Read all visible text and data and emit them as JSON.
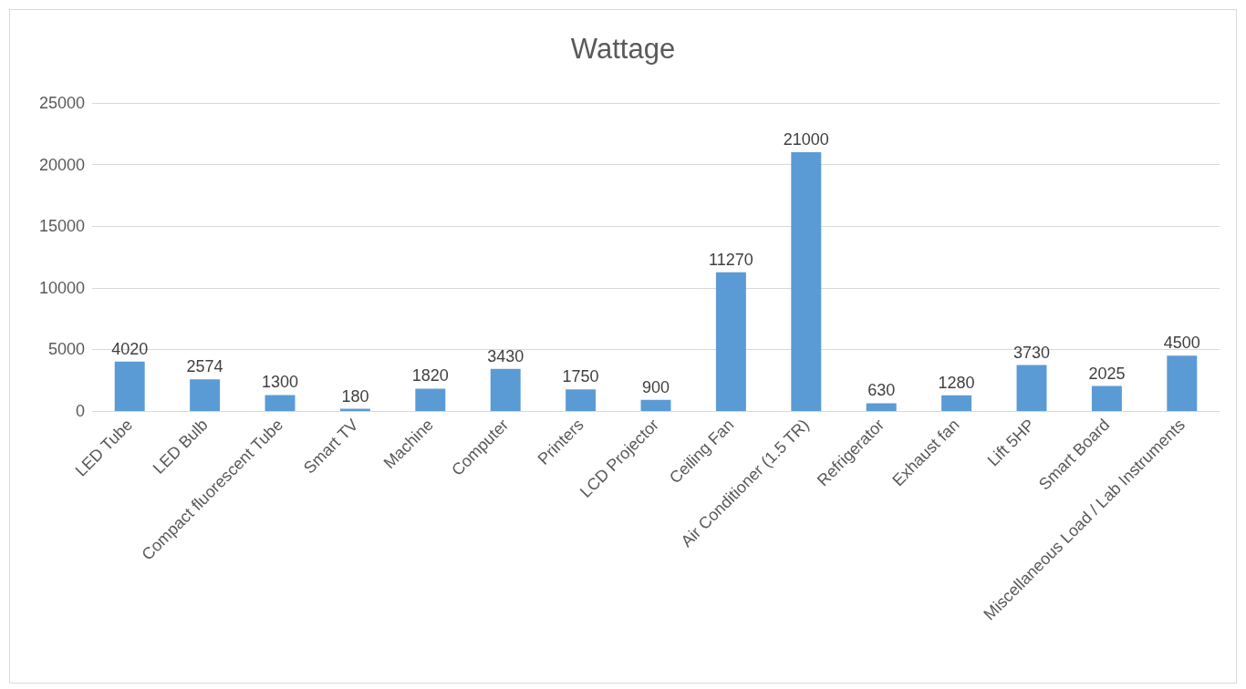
{
  "chart_data": {
    "type": "bar",
    "title": "Wattage",
    "categories": [
      "LED Tube",
      "LED Bulb",
      "Compact fluorescent Tube",
      "Smart TV",
      "Machine",
      "Computer",
      "Printers",
      "LCD Projector",
      "Ceiling Fan",
      "Air Conditioner (1.5 TR)",
      "Refrigerator",
      "Exhaust fan",
      "Lift 5HP",
      "Smart Board",
      "Miscellaneous Load / Lab Instruments"
    ],
    "values": [
      4020,
      2574,
      1300,
      180,
      1820,
      3430,
      1750,
      900,
      11270,
      21000,
      630,
      1280,
      3730,
      2025,
      4500
    ],
    "color": "#5b9bd5",
    "ylim": [
      0,
      25000
    ],
    "yticks": [
      0,
      5000,
      10000,
      15000,
      20000,
      25000
    ],
    "grid": "y",
    "data_labels": true
  }
}
